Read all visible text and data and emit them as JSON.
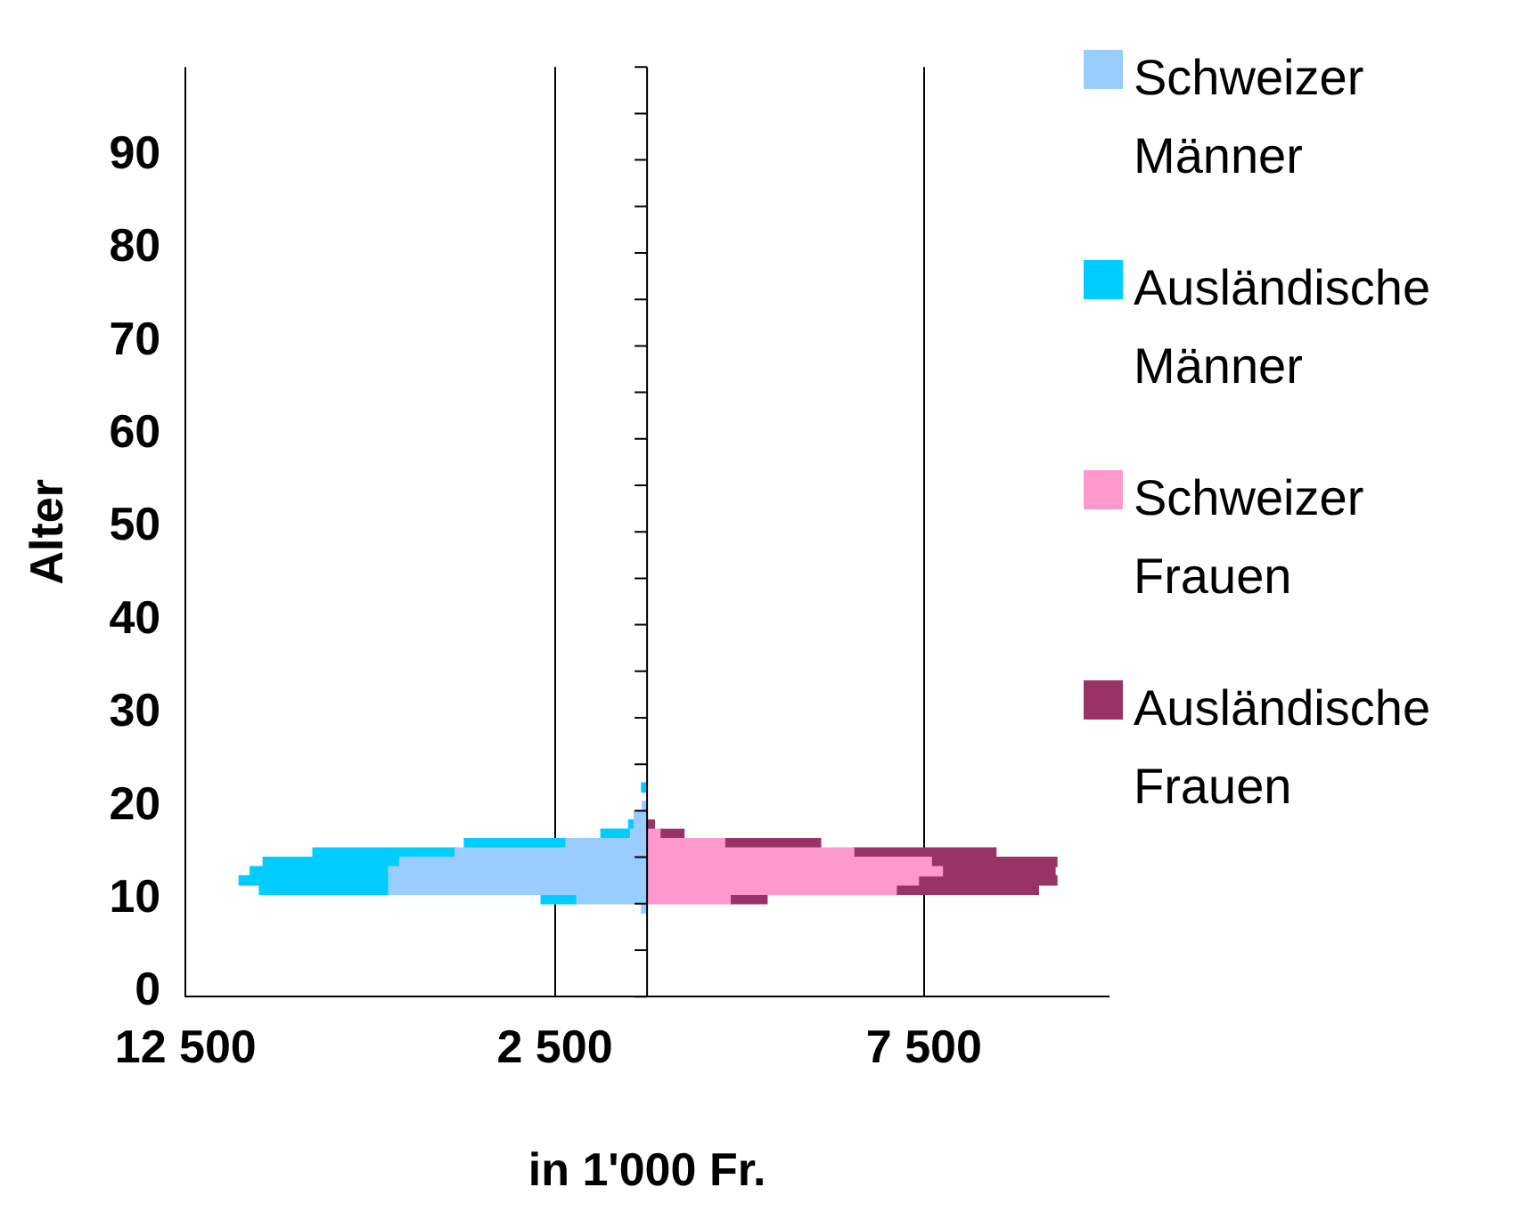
{
  "chart_data": {
    "type": "bar",
    "orientation": "horizontal",
    "stacked": true,
    "xlabel": "in 1'000 Fr.",
    "ylabel": "Alter",
    "categories": [
      null,
      null,
      null,
      null,
      null,
      null,
      null,
      null,
      null,
      "90",
      null,
      null,
      null,
      null,
      null,
      null,
      null,
      null,
      null,
      "80",
      null,
      null,
      null,
      null,
      null,
      null,
      null,
      null,
      null,
      "70",
      null,
      null,
      null,
      null,
      null,
      null,
      null,
      null,
      null,
      "60",
      null,
      null,
      null,
      null,
      null,
      null,
      null,
      null,
      null,
      "50",
      null,
      null,
      null,
      null,
      null,
      null,
      null,
      null,
      null,
      "40",
      null,
      null,
      null,
      null,
      null,
      null,
      null,
      null,
      null,
      "30",
      null,
      null,
      null,
      null,
      null,
      null,
      null,
      null,
      null,
      "20",
      null,
      null,
      null,
      null,
      null,
      null,
      null,
      null,
      null,
      "10",
      null,
      null,
      null,
      null,
      null,
      null,
      null,
      null,
      null,
      "0"
    ],
    "series": [
      {
        "name": "Schweizer Männer",
        "color": "#99ccff",
        "values": [
          null,
          null,
          null,
          null,
          null,
          null,
          null,
          null,
          null,
          null,
          null,
          null,
          null,
          null,
          null,
          null,
          null,
          null,
          null,
          null,
          null,
          null,
          null,
          null,
          null,
          null,
          null,
          null,
          null,
          null,
          null,
          null,
          null,
          null,
          null,
          null,
          null,
          null,
          null,
          null,
          null,
          null,
          null,
          null,
          null,
          null,
          null,
          null,
          null,
          null,
          null,
          null,
          null,
          null,
          null,
          null,
          null,
          null,
          null,
          null,
          null,
          null,
          null,
          null,
          null,
          null,
          null,
          null,
          null,
          null,
          null,
          null,
          null,
          null,
          null,
          null,
          null,
          null,
          null,
          -130,
          -350,
          -350,
          -450,
          -2200,
          -5200,
          -6700,
          -7000,
          -7000,
          -7000,
          -1900,
          -150,
          null,
          null,
          null,
          null,
          null,
          null,
          null,
          null,
          null
        ]
      },
      {
        "name": "Ausländische Männer",
        "color": "#00ccff",
        "values": [
          null,
          null,
          null,
          null,
          null,
          null,
          null,
          null,
          null,
          null,
          null,
          null,
          null,
          null,
          null,
          null,
          null,
          null,
          null,
          null,
          null,
          null,
          null,
          null,
          null,
          null,
          null,
          null,
          null,
          null,
          null,
          null,
          null,
          null,
          null,
          null,
          null,
          null,
          null,
          null,
          null,
          null,
          null,
          null,
          null,
          null,
          null,
          null,
          null,
          null,
          null,
          null,
          null,
          null,
          null,
          null,
          null,
          null,
          null,
          null,
          null,
          null,
          null,
          null,
          null,
          null,
          null,
          null,
          null,
          null,
          null,
          null,
          null,
          null,
          null,
          null,
          null,
          -150,
          null,
          null,
          null,
          -150,
          -800,
          -2750,
          -3850,
          -3700,
          -3750,
          -4050,
          -3500,
          -970,
          null,
          null,
          null,
          null,
          null,
          null,
          null,
          null,
          null,
          null
        ]
      },
      {
        "name": "Schweizer Frauen",
        "color": "#ff99cc",
        "values": [
          null,
          null,
          null,
          null,
          null,
          null,
          null,
          null,
          null,
          null,
          null,
          null,
          null,
          null,
          null,
          null,
          null,
          null,
          null,
          null,
          null,
          null,
          null,
          null,
          null,
          null,
          null,
          null,
          null,
          null,
          null,
          null,
          null,
          null,
          null,
          null,
          null,
          null,
          null,
          null,
          null,
          null,
          null,
          null,
          null,
          null,
          null,
          null,
          null,
          null,
          null,
          null,
          null,
          null,
          null,
          null,
          null,
          null,
          null,
          null,
          null,
          null,
          null,
          null,
          null,
          null,
          null,
          null,
          null,
          null,
          null,
          null,
          null,
          null,
          null,
          null,
          null,
          null,
          null,
          null,
          null,
          null,
          350,
          2100,
          5600,
          7700,
          8000,
          7350,
          6750,
          2250,
          null,
          null,
          null,
          null,
          null,
          null,
          null,
          null,
          null,
          null
        ]
      },
      {
        "name": "Ausländische Frauen",
        "color": "#993366",
        "values": [
          null,
          null,
          null,
          null,
          null,
          null,
          null,
          null,
          null,
          null,
          null,
          null,
          null,
          null,
          null,
          null,
          null,
          null,
          null,
          null,
          null,
          null,
          null,
          null,
          null,
          null,
          null,
          null,
          null,
          null,
          null,
          null,
          null,
          null,
          null,
          null,
          null,
          null,
          null,
          null,
          null,
          null,
          null,
          null,
          null,
          null,
          null,
          null,
          null,
          null,
          null,
          null,
          null,
          null,
          null,
          null,
          null,
          null,
          null,
          null,
          null,
          null,
          null,
          null,
          null,
          null,
          null,
          null,
          null,
          null,
          null,
          null,
          null,
          null,
          null,
          null,
          null,
          null,
          null,
          null,
          null,
          200,
          650,
          2600,
          3850,
          3400,
          3050,
          3750,
          3850,
          1000,
          null,
          null,
          null,
          null,
          null,
          null,
          null,
          null,
          null,
          null
        ]
      }
    ],
    "xlim": [
      -12500,
      12500
    ],
    "xticks": [
      {
        "value": -12500,
        "label": "12 500"
      },
      {
        "value": -2500,
        "label": "2 500"
      },
      {
        "value": 7500,
        "label": "7 500"
      }
    ],
    "grid": "x",
    "legend": "right"
  }
}
